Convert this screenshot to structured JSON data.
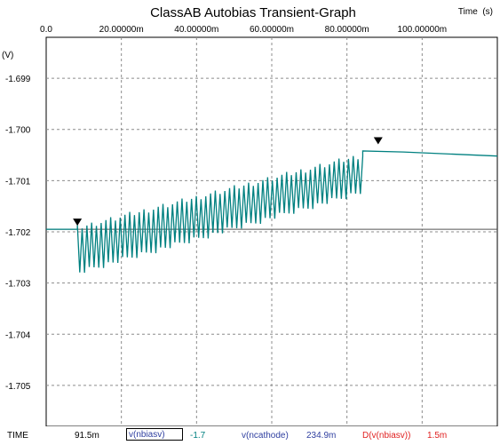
{
  "chart_data": {
    "type": "line",
    "title": "ClassAB Autobias Transient-Graph",
    "xlabel": "Time  (s)",
    "ylabel": "(V)",
    "xlim": [
      0,
      0.12
    ],
    "ylim": [
      -1.7058,
      -1.6982
    ],
    "x_ticks": [
      {
        "value": 0,
        "label": "0.0"
      },
      {
        "value": 0.02,
        "label": "20.00000m"
      },
      {
        "value": 0.04,
        "label": "40.00000m"
      },
      {
        "value": 0.06,
        "label": "60.00000m"
      },
      {
        "value": 0.08,
        "label": "80.00000m"
      },
      {
        "value": 0.1,
        "label": "100.00000m"
      }
    ],
    "y_ticks": [
      {
        "value": -1.699,
        "label": "-1.699"
      },
      {
        "value": -1.7,
        "label": "-1.700"
      },
      {
        "value": -1.701,
        "label": "-1.701"
      },
      {
        "value": -1.702,
        "label": "-1.702"
      },
      {
        "value": -1.703,
        "label": "-1.703"
      },
      {
        "value": -1.704,
        "label": "-1.704"
      },
      {
        "value": -1.705,
        "label": "-1.705"
      }
    ],
    "grid": true,
    "series": [
      {
        "name": "v(nbiasv)",
        "color": "#008080",
        "segments": [
          {
            "kind": "flat",
            "x": [
              0,
              0.0083
            ],
            "y": [
              -1.70195,
              -1.70195
            ]
          },
          {
            "kind": "oscillation",
            "x": [
              0.0083,
              0.0842
            ],
            "upper_start": -1.70187,
            "upper_end": -1.70045,
            "lower_start": -1.70285,
            "lower_end": -1.70128
          },
          {
            "kind": "settle",
            "x": [
              0.0842,
              0.12
            ],
            "y_points": [
              [
                0.0842,
                -1.70042
              ],
              [
                0.095,
                -1.70044
              ],
              [
                0.12,
                -1.70052
              ]
            ]
          }
        ]
      }
    ],
    "cursor_line": {
      "y": -1.70195,
      "color": "#555555"
    },
    "markers": [
      {
        "x": 0.0083,
        "y": -1.70195,
        "shape": "triangle-down"
      },
      {
        "x": 0.0883,
        "y": -1.70036,
        "shape": "triangle-down"
      }
    ]
  },
  "status_bar": {
    "time_label": "TIME",
    "time_value": "91.5m",
    "trace1_name": "v(nbiasv)",
    "trace1_value": "-1.7",
    "trace2_name": "v(ncathode)",
    "trace2_value": "234.9m",
    "trace3_name": "D(v(nbiasv))",
    "trace3_value": "1.5m",
    "colors": {
      "trace1": "#008080",
      "trace2": "#2f3fa0",
      "trace3": "#e02020"
    }
  }
}
